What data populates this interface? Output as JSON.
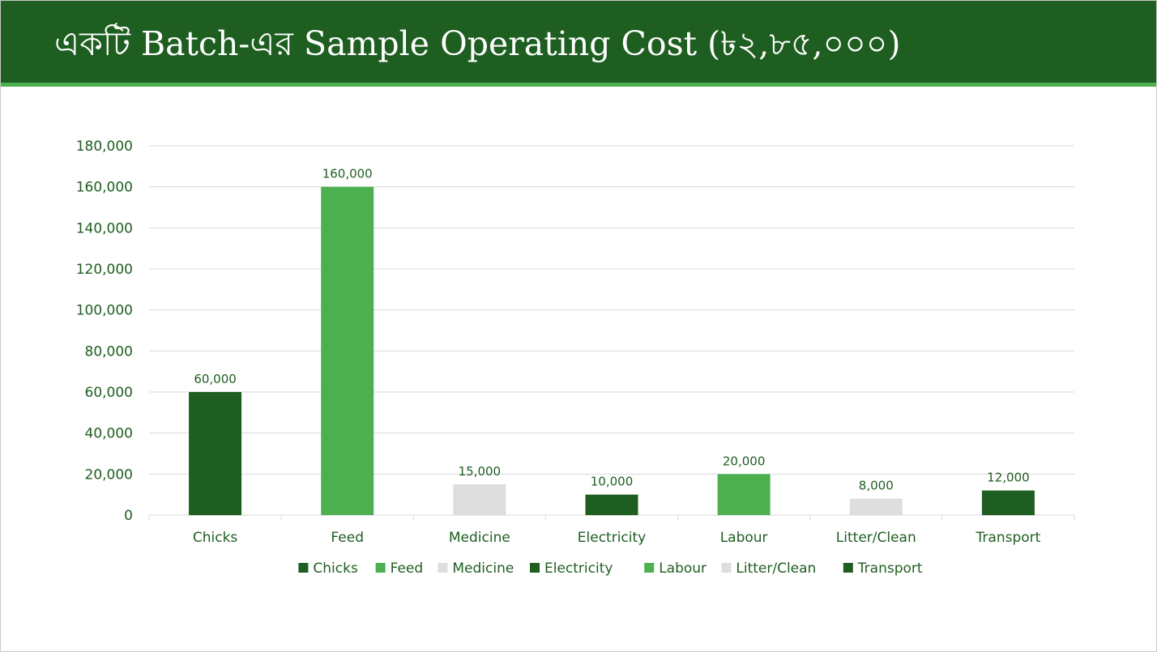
{
  "slide": {
    "title": "একটি Batch-এর Sample Operating Cost (৳২,৮৫,০০০)"
  },
  "colors": {
    "header_bg": "#1e5e20",
    "header_accent": "#4caf50",
    "axis_text": "#1e5e20",
    "gridline": "#d9d9d9"
  },
  "chart_data": {
    "type": "bar",
    "title": "",
    "xlabel": "",
    "ylabel": "",
    "categories": [
      "Chicks",
      "Feed",
      "Medicine",
      "Electricity",
      "Labour",
      "Litter/Clean",
      "Transport"
    ],
    "values": [
      60000,
      160000,
      15000,
      10000,
      20000,
      8000,
      12000
    ],
    "value_labels": [
      "60,000",
      "160,000",
      "15,000",
      "10,000",
      "20,000",
      "8,000",
      "12,000"
    ],
    "bar_colors": [
      "#1e5e20",
      "#4caf50",
      "#dedede",
      "#1e5e20",
      "#4caf50",
      "#dedede",
      "#1e5e20"
    ],
    "ylim": [
      0,
      180000
    ],
    "yticks": [
      0,
      20000,
      40000,
      60000,
      80000,
      100000,
      120000,
      140000,
      160000,
      180000
    ],
    "ytick_labels": [
      "0",
      "20,000",
      "40,000",
      "60,000",
      "80,000",
      "100,000",
      "120,000",
      "140,000",
      "160,000",
      "180,000"
    ],
    "grid": true,
    "legend": {
      "position": "bottom",
      "entries": [
        "Chicks",
        "Feed",
        "Medicine",
        "Electricity",
        "Labour",
        "Litter/Clean",
        "Transport"
      ]
    }
  }
}
